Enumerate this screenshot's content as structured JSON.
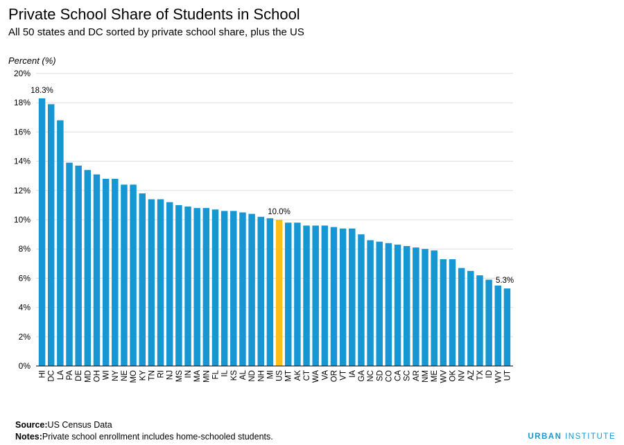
{
  "title": "Private School Share of Students in School",
  "subtitle": "All 50 states and DC sorted by private school share, plus the US",
  "footer": {
    "source_label": "Source:",
    "source_text": "US Census Data",
    "notes_label": "Notes:",
    "notes_text": "Private school enrollment includes home-schooled students.",
    "brand_bold": "URBAN",
    "brand_rest": " INSTITUTE"
  },
  "chart_data": {
    "type": "bar",
    "title": "Private School Share of Students in School",
    "subtitle": "All 50 states and DC sorted by private school share, plus the US",
    "ylabel": "Percent (%)",
    "ylim": [
      0,
      20
    ],
    "yticks": [
      "0%",
      "2%",
      "4%",
      "6%",
      "8%",
      "10%",
      "12%",
      "14%",
      "16%",
      "18%",
      "20%"
    ],
    "grid": true,
    "categories": [
      "HI",
      "DC",
      "LA",
      "PA",
      "DE",
      "MD",
      "OH",
      "WI",
      "NY",
      "NE",
      "MO",
      "KY",
      "TN",
      "RI",
      "NJ",
      "MS",
      "IN",
      "MA",
      "MN",
      "FL",
      "IL",
      "KS",
      "AL",
      "ND",
      "NH",
      "MI",
      "US",
      "MT",
      "AK",
      "CT",
      "WA",
      "VA",
      "OR",
      "VT",
      "IA",
      "GA",
      "NC",
      "SD",
      "CO",
      "CA",
      "SC",
      "AR",
      "NM",
      "ME",
      "WV",
      "OK",
      "NV",
      "AZ",
      "TX",
      "ID",
      "WY",
      "UT"
    ],
    "values": [
      18.3,
      17.9,
      16.8,
      13.9,
      13.7,
      13.4,
      13.1,
      12.8,
      12.8,
      12.4,
      12.4,
      11.8,
      11.4,
      11.4,
      11.2,
      11.0,
      10.9,
      10.8,
      10.8,
      10.7,
      10.6,
      10.6,
      10.5,
      10.4,
      10.2,
      10.1,
      10.0,
      9.8,
      9.8,
      9.6,
      9.6,
      9.6,
      9.5,
      9.4,
      9.4,
      9.0,
      8.6,
      8.5,
      8.4,
      8.3,
      8.2,
      8.1,
      8.0,
      7.9,
      7.3,
      7.3,
      6.7,
      6.5,
      6.2,
      5.9,
      5.5,
      5.3
    ],
    "colors": {
      "default": "#1696d2",
      "highlight": "#fdbf11"
    },
    "highlight_category": "US",
    "annotations": [
      {
        "category": "HI",
        "text": "18.3%"
      },
      {
        "category": "US",
        "text": "10.0%"
      },
      {
        "category": "UT",
        "text": "5.3%"
      }
    ]
  }
}
